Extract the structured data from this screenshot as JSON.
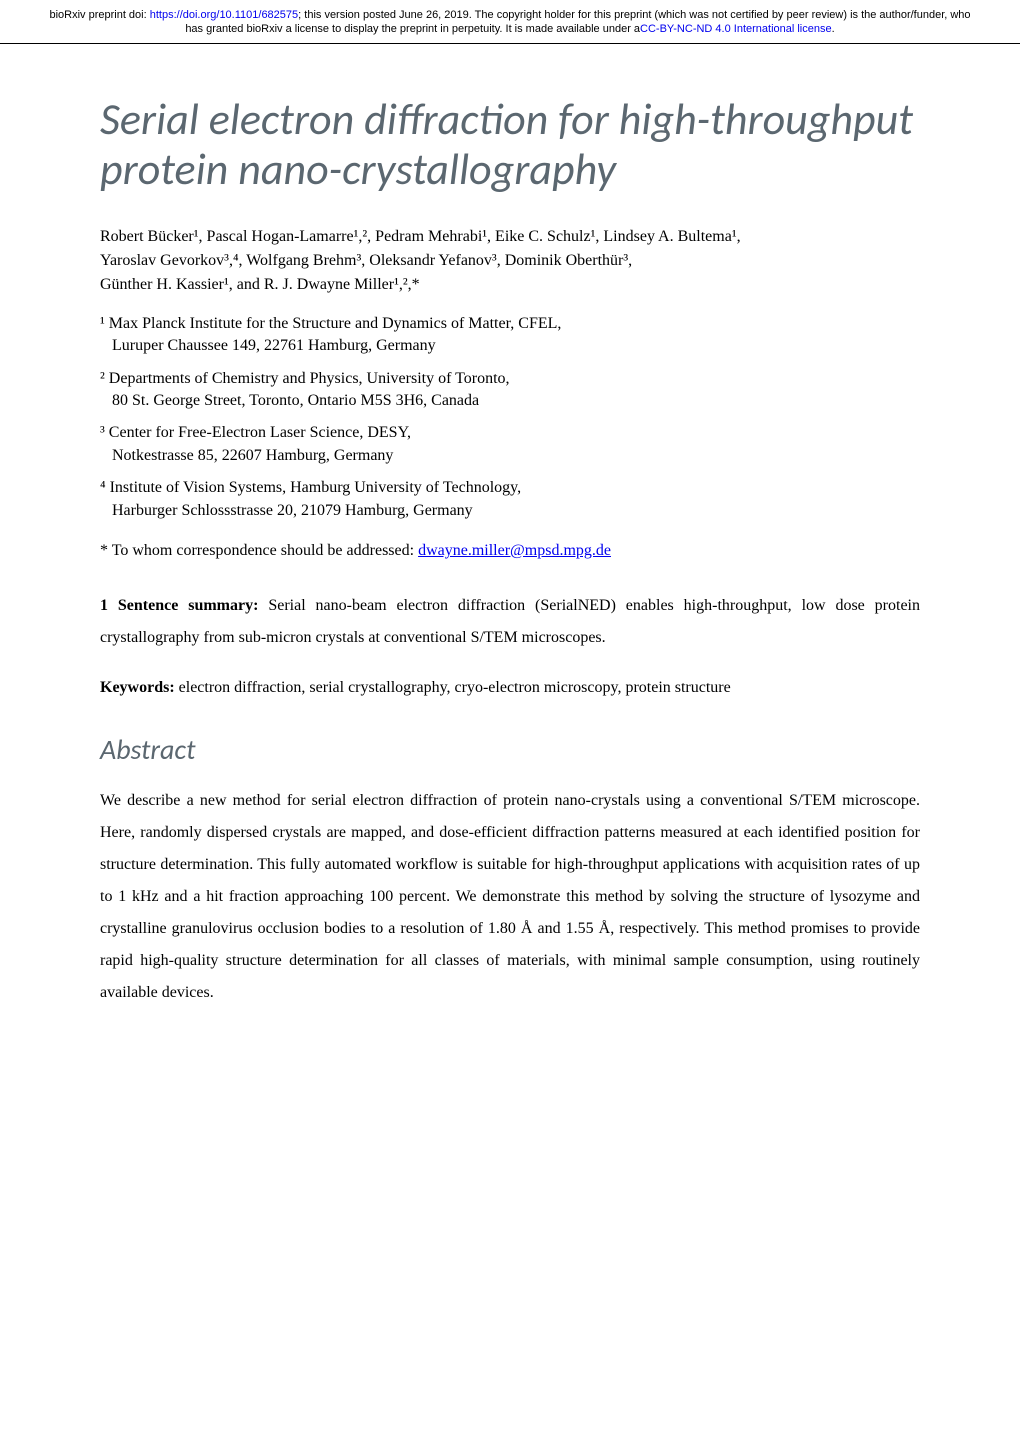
{
  "header": {
    "notice_prefix": "bioRxiv preprint doi: ",
    "doi_url": "https://doi.org/10.1101/682575",
    "notice_middle": "; this version posted June 26, 2019. The copyright holder for this preprint (which was not certified by peer review) is the author/funder, who has granted bioRxiv a license to display the preprint in perpetuity. It is made available under a",
    "license_text": "CC-BY-NC-ND 4.0 International license",
    "notice_suffix": "."
  },
  "title": "Serial electron diffraction for high-throughput protein nano-crystallography",
  "authors_line1": "Robert Bücker¹, Pascal Hogan-Lamarre¹,², Pedram Mehrabi¹, Eike C. Schulz¹, Lindsey A. Bultema¹,",
  "authors_line2": "Yaroslav Gevorkov³,⁴, Wolfgang Brehm³, Oleksandr Yefanov³, Dominik Oberthür³,",
  "authors_line3": "Günther H. Kassier¹, and R. J. Dwayne Miller¹,²,*",
  "affiliations": [
    {
      "num": "¹",
      "name": "Max Planck Institute for the Structure and Dynamics of Matter, CFEL,",
      "address": "Luruper Chaussee 149, 22761 Hamburg, Germany"
    },
    {
      "num": "²",
      "name": "Departments of Chemistry and Physics, University of Toronto,",
      "address": "80 St. George Street, Toronto, Ontario M5S 3H6, Canada"
    },
    {
      "num": "³",
      "name": "Center for Free-Electron Laser Science, DESY,",
      "address": "Notkestrasse 85, 22607 Hamburg, Germany"
    },
    {
      "num": "⁴",
      "name": "Institute of Vision Systems, Hamburg University of Technology,",
      "address": "Harburger Schlossstrasse 20, 21079 Hamburg, Germany"
    }
  ],
  "correspondence": {
    "prefix": "* To whom correspondence should be addressed: ",
    "email": "dwayne.miller@mpsd.mpg.de"
  },
  "summary": {
    "label": "1 Sentence summary:",
    "text": " Serial nano-beam electron diffraction (SerialNED) enables high-throughput, low dose protein crystallography from sub-micron crystals at conventional S/TEM microscopes."
  },
  "keywords": {
    "label": "Keywords:",
    "text": " electron diffraction, serial crystallography, cryo-electron microscopy, protein structure"
  },
  "abstract": {
    "heading": "Abstract",
    "body": "We describe a new method for serial electron diffraction of protein nano-crystals using a conventional S/TEM microscope. Here, randomly dispersed crystals are mapped, and dose-efficient diffraction patterns measured at each identified position for structure determination. This fully automated workflow is suitable for high-throughput applications with acquisition rates of up to 1 kHz and a hit fraction approaching 100 percent. We demonstrate this method by solving the structure of lysozyme and crystalline granulovirus occlusion bodies to a resolution of 1.80 Å and 1.55 Å, respectively. This method promises to provide rapid high-quality structure determination for all classes of materials, with minimal sample consumption, using routinely available devices."
  },
  "colors": {
    "heading_color": "#5b6770",
    "link_color": "#0000ee",
    "text_color": "#000000",
    "background": "#ffffff"
  },
  "typography": {
    "title_fontsize": 44,
    "body_fontsize": 16,
    "section_heading_fontsize": 28,
    "header_notice_fontsize": 11
  }
}
